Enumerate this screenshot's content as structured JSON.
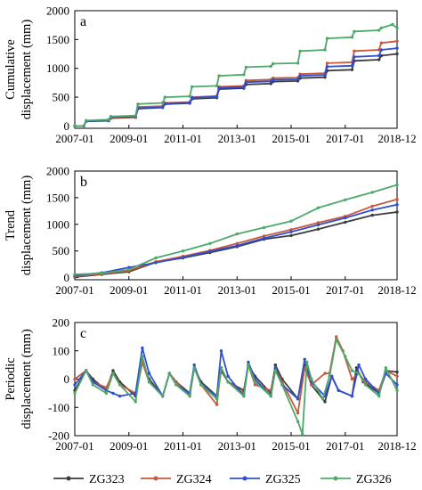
{
  "chart_data": [
    {
      "type": "line",
      "panel_label": "a",
      "ylabel_lines": [
        "Cumulative",
        "displacement (mm)"
      ],
      "ylim": [
        -40,
        2000
      ],
      "yticks": [
        0,
        500,
        1000,
        1500,
        2000
      ],
      "xlim": [
        "2007-01",
        "2018-12"
      ],
      "xticks": [
        "2007-01",
        "2009-01",
        "2011-01",
        "2013-01",
        "2015-01",
        "2017-01",
        "2018-12"
      ],
      "series": [
        {
          "name": "ZG323",
          "x": [
            "2007-01",
            "2007-05",
            "2007-06",
            "2008-04",
            "2008-05",
            "2009-04",
            "2009-05",
            "2010-04",
            "2010-05",
            "2011-04",
            "2011-05",
            "2012-04",
            "2012-05",
            "2013-04",
            "2013-05",
            "2014-04",
            "2014-05",
            "2015-04",
            "2015-05",
            "2016-04",
            "2016-05",
            "2017-04",
            "2017-05",
            "2018-04",
            "2018-05",
            "2018-12"
          ],
          "values": [
            0,
            0,
            80,
            90,
            135,
            150,
            300,
            320,
            380,
            395,
            470,
            490,
            640,
            655,
            720,
            735,
            770,
            780,
            830,
            845,
            960,
            975,
            1130,
            1150,
            1220,
            1250
          ]
        },
        {
          "name": "ZG324",
          "x": [
            "2007-01",
            "2007-05",
            "2007-06",
            "2008-04",
            "2008-05",
            "2009-04",
            "2009-05",
            "2010-04",
            "2010-05",
            "2011-04",
            "2011-05",
            "2012-04",
            "2012-05",
            "2013-04",
            "2013-05",
            "2014-04",
            "2014-05",
            "2015-04",
            "2015-05",
            "2016-04",
            "2016-05",
            "2017-04",
            "2017-05",
            "2018-04",
            "2018-05",
            "2018-12"
          ],
          "values": [
            0,
            0,
            90,
            100,
            140,
            155,
            330,
            345,
            400,
            415,
            500,
            520,
            680,
            695,
            790,
            805,
            830,
            840,
            900,
            915,
            1090,
            1105,
            1300,
            1320,
            1440,
            1470
          ]
        },
        {
          "name": "ZG325",
          "x": [
            "2007-01",
            "2007-05",
            "2007-06",
            "2008-04",
            "2008-05",
            "2009-04",
            "2009-05",
            "2010-04",
            "2010-05",
            "2011-04",
            "2011-05",
            "2012-04",
            "2012-05",
            "2013-04",
            "2013-05",
            "2014-04",
            "2014-05",
            "2015-04",
            "2015-05",
            "2016-04",
            "2016-05",
            "2017-04",
            "2017-05",
            "2018-04",
            "2018-05",
            "2018-12"
          ],
          "values": [
            0,
            0,
            85,
            95,
            150,
            165,
            310,
            325,
            390,
            405,
            490,
            505,
            660,
            675,
            760,
            775,
            800,
            810,
            870,
            885,
            1030,
            1045,
            1200,
            1220,
            1320,
            1350
          ]
        },
        {
          "name": "ZG326",
          "x": [
            "2007-01",
            "2007-05",
            "2007-06",
            "2008-04",
            "2008-05",
            "2009-04",
            "2009-05",
            "2010-04",
            "2010-05",
            "2011-04",
            "2011-05",
            "2012-04",
            "2012-05",
            "2013-04",
            "2013-05",
            "2014-04",
            "2014-05",
            "2015-04",
            "2015-05",
            "2016-04",
            "2016-05",
            "2017-04",
            "2017-05",
            "2018-04",
            "2018-05",
            "2018-10",
            "2018-12"
          ],
          "values": [
            0,
            0,
            95,
            110,
            165,
            180,
            380,
            400,
            500,
            515,
            680,
            695,
            870,
            890,
            1020,
            1035,
            1080,
            1090,
            1300,
            1320,
            1520,
            1540,
            1640,
            1660,
            1700,
            1760,
            1700
          ]
        }
      ]
    },
    {
      "type": "line",
      "panel_label": "b",
      "ylabel_lines": [
        "Trend",
        "displacement (mm)"
      ],
      "ylim": [
        -40,
        2000
      ],
      "yticks": [
        0,
        500,
        1000,
        1500,
        2000
      ],
      "xlim": [
        "2007-01",
        "2018-12"
      ],
      "xticks": [
        "2007-01",
        "2009-01",
        "2011-01",
        "2013-01",
        "2015-01",
        "2017-01",
        "2018-12"
      ],
      "series": [
        {
          "name": "ZG323",
          "x": [
            "2007-01",
            "2008-01",
            "2009-01",
            "2010-01",
            "2011-01",
            "2012-01",
            "2013-01",
            "2014-01",
            "2015-01",
            "2016-01",
            "2017-01",
            "2018-01",
            "2018-12"
          ],
          "values": [
            10,
            60,
            110,
            290,
            370,
            470,
            580,
            720,
            790,
            910,
            1040,
            1170,
            1230
          ]
        },
        {
          "name": "ZG324",
          "x": [
            "2007-01",
            "2008-01",
            "2009-01",
            "2010-01",
            "2011-01",
            "2012-01",
            "2013-01",
            "2014-01",
            "2015-01",
            "2016-01",
            "2017-01",
            "2018-01",
            "2018-12"
          ],
          "values": [
            20,
            70,
            130,
            300,
            400,
            510,
            640,
            780,
            900,
            1030,
            1150,
            1340,
            1470
          ]
        },
        {
          "name": "ZG325",
          "x": [
            "2007-01",
            "2008-01",
            "2009-01",
            "2010-01",
            "2011-01",
            "2012-01",
            "2013-01",
            "2014-01",
            "2015-01",
            "2016-01",
            "2017-01",
            "2018-01",
            "2018-12"
          ],
          "values": [
            40,
            90,
            190,
            280,
            380,
            490,
            600,
            740,
            860,
            990,
            1120,
            1270,
            1370
          ]
        },
        {
          "name": "ZG326",
          "x": [
            "2007-01",
            "2008-01",
            "2009-01",
            "2010-01",
            "2011-01",
            "2012-01",
            "2013-01",
            "2014-01",
            "2015-01",
            "2016-01",
            "2017-01",
            "2018-01",
            "2018-12"
          ],
          "values": [
            60,
            80,
            150,
            370,
            500,
            640,
            820,
            940,
            1060,
            1310,
            1460,
            1600,
            1740
          ]
        }
      ]
    },
    {
      "type": "line",
      "panel_label": "c",
      "ylabel_lines": [
        "Periodic",
        "displacement (mm)"
      ],
      "ylim": [
        -200,
        200
      ],
      "yticks": [
        -200,
        -100,
        0,
        100,
        200
      ],
      "xlim": [
        "2007-01",
        "2018-12"
      ],
      "xticks": [
        "2007-01",
        "2009-01",
        "2011-01",
        "2013-01",
        "2015-01",
        "2017-01",
        "2018-12"
      ],
      "series": [
        {
          "name": "ZG323",
          "x": [
            "2007-01",
            "2007-06",
            "2007-09",
            "2008-03",
            "2008-06",
            "2008-09",
            "2009-04",
            "2009-07",
            "2009-10",
            "2010-04",
            "2010-07",
            "2010-10",
            "2011-04",
            "2011-06",
            "2011-09",
            "2012-04",
            "2012-06",
            "2012-09",
            "2013-04",
            "2013-06",
            "2013-09",
            "2014-04",
            "2014-06",
            "2014-09",
            "2015-04",
            "2015-07",
            "2015-10",
            "2016-04",
            "2016-07",
            "2016-10",
            "2017-04",
            "2017-06",
            "2017-09",
            "2018-04",
            "2018-07",
            "2018-12"
          ],
          "values": [
            -40,
            30,
            0,
            -40,
            30,
            -10,
            -60,
            60,
            0,
            -60,
            20,
            -10,
            -50,
            40,
            -10,
            -60,
            30,
            -10,
            -40,
            50,
            10,
            -50,
            50,
            0,
            -70,
            50,
            -20,
            -80,
            10,
            -40,
            -60,
            40,
            -10,
            -50,
            30,
            25
          ]
        },
        {
          "name": "ZG324",
          "x": [
            "2007-01",
            "2007-06",
            "2007-09",
            "2008-03",
            "2008-06",
            "2008-09",
            "2009-04",
            "2009-07",
            "2009-10",
            "2010-04",
            "2010-07",
            "2010-10",
            "2011-04",
            "2011-06",
            "2011-09",
            "2012-04",
            "2012-06",
            "2012-09",
            "2013-04",
            "2013-06",
            "2013-09",
            "2014-04",
            "2014-06",
            "2014-09",
            "2015-04",
            "2015-07",
            "2015-10",
            "2016-04",
            "2016-06",
            "2016-09",
            "2016-12",
            "2017-04",
            "2017-07",
            "2017-10",
            "2018-04",
            "2018-07",
            "2018-12"
          ],
          "values": [
            0,
            30,
            -10,
            -30,
            20,
            -20,
            -50,
            60,
            -10,
            -60,
            20,
            -10,
            -60,
            40,
            -20,
            -90,
            40,
            -10,
            -50,
            50,
            -20,
            -40,
            40,
            -10,
            -120,
            40,
            -20,
            20,
            20,
            150,
            100,
            0,
            20,
            -10,
            -40,
            30,
            10
          ]
        },
        {
          "name": "ZG325",
          "x": [
            "2007-01",
            "2007-06",
            "2007-09",
            "2008-03",
            "2008-06",
            "2008-09",
            "2009-04",
            "2009-07",
            "2009-10",
            "2010-04",
            "2010-07",
            "2010-10",
            "2011-04",
            "2011-06",
            "2011-09",
            "2012-04",
            "2012-06",
            "2012-09",
            "2013-04",
            "2013-06",
            "2013-09",
            "2014-04",
            "2014-06",
            "2014-09",
            "2015-04",
            "2015-07",
            "2015-10",
            "2016-04",
            "2016-07",
            "2016-10",
            "2017-04",
            "2017-07",
            "2017-10",
            "2018-04",
            "2018-07",
            "2018-12"
          ],
          "values": [
            -20,
            30,
            -10,
            -40,
            -50,
            -60,
            -50,
            110,
            20,
            -60,
            20,
            -20,
            -50,
            50,
            -20,
            -60,
            100,
            10,
            -60,
            60,
            0,
            -60,
            40,
            -20,
            -70,
            70,
            -10,
            -60,
            10,
            -40,
            -60,
            50,
            0,
            -50,
            20,
            -20
          ]
        },
        {
          "name": "ZG326",
          "x": [
            "2007-01",
            "2007-06",
            "2007-09",
            "2008-03",
            "2008-06",
            "2008-09",
            "2009-04",
            "2009-07",
            "2009-10",
            "2010-04",
            "2010-07",
            "2010-10",
            "2011-04",
            "2011-06",
            "2011-09",
            "2012-04",
            "2012-06",
            "2012-09",
            "2013-04",
            "2013-06",
            "2013-09",
            "2014-04",
            "2014-06",
            "2014-09",
            "2015-04",
            "2015-06",
            "2015-08",
            "2015-10",
            "2016-03",
            "2016-06",
            "2016-09",
            "2017-01",
            "2017-04",
            "2017-07",
            "2017-10",
            "2018-04",
            "2018-07",
            "2018-12"
          ],
          "values": [
            -50,
            30,
            -20,
            -50,
            20,
            -20,
            -80,
            80,
            -10,
            -60,
            20,
            -20,
            -60,
            40,
            -20,
            -70,
            40,
            -10,
            -60,
            50,
            -10,
            -60,
            30,
            -20,
            -150,
            -195,
            60,
            0,
            -70,
            10,
            140,
            80,
            30,
            20,
            -20,
            -60,
            40,
            -40
          ]
        }
      ]
    }
  ],
  "legend": [
    {
      "name": "ZG323",
      "color": "#3c3c3c"
    },
    {
      "name": "ZG324",
      "color": "#c55a3c"
    },
    {
      "name": "ZG325",
      "color": "#2e4fd3"
    },
    {
      "name": "ZG326",
      "color": "#4fa86a"
    }
  ]
}
